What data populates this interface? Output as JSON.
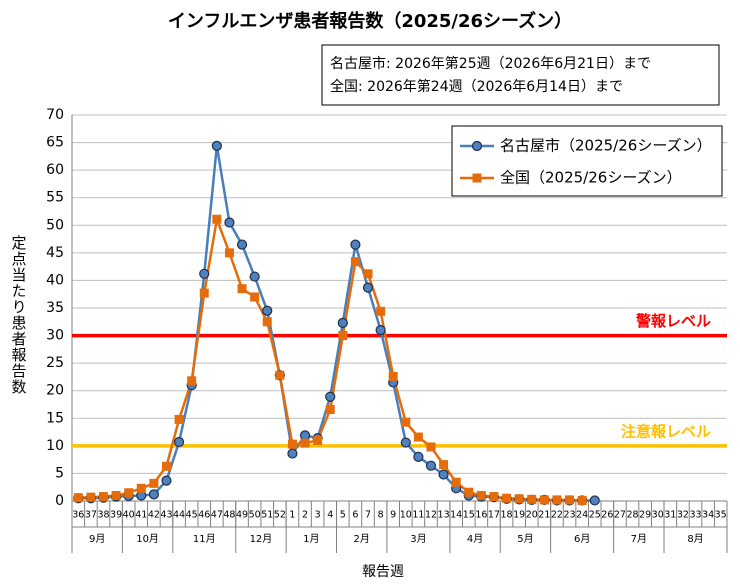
{
  "chart_data": {
    "type": "line",
    "title": "インフルエンザ患者報告数（2025/26シーズン）",
    "note_lines": [
      "名古屋市: 2026年第25週（2026年6月21日）まで",
      "全国: 2026年第24週（2026年6月14日）まで"
    ],
    "y_label": "定点当たり患者報告数",
    "x_label": "報告週",
    "categories": [
      "36",
      "37",
      "38",
      "39",
      "40",
      "41",
      "42",
      "43",
      "44",
      "45",
      "46",
      "47",
      "48",
      "49",
      "50",
      "51",
      "52",
      "1",
      "2",
      "3",
      "4",
      "5",
      "6",
      "7",
      "8",
      "9",
      "10",
      "11",
      "12",
      "13",
      "14",
      "15",
      "16",
      "17",
      "18",
      "19",
      "20",
      "21",
      "22",
      "23",
      "24",
      "25",
      "26",
      "27",
      "28",
      "29",
      "30",
      "31",
      "32",
      "33",
      "34",
      "35"
    ],
    "month_groups": [
      {
        "label": "9月",
        "span": 4
      },
      {
        "label": "10月",
        "span": 4
      },
      {
        "label": "11月",
        "span": 5
      },
      {
        "label": "12月",
        "span": 4
      },
      {
        "label": "1月",
        "span": 4
      },
      {
        "label": "2月",
        "span": 4
      },
      {
        "label": "3月",
        "span": 5
      },
      {
        "label": "4月",
        "span": 4
      },
      {
        "label": "5月",
        "span": 4
      },
      {
        "label": "6月",
        "span": 5
      },
      {
        "label": "7月",
        "span": 4
      },
      {
        "label": "8月",
        "span": 5
      }
    ],
    "series": [
      {
        "name": "名古屋市（2025/26シーズン）",
        "color": "#4a7ebb",
        "marker": "circle",
        "values": [
          0.5,
          0.5,
          0.6,
          0.8,
          0.9,
          1.0,
          1.2,
          3.7,
          10.7,
          21,
          41.2,
          64.4,
          50.5,
          46.5,
          40.7,
          34.5,
          22.8,
          8.6,
          11.9,
          11.4,
          18.9,
          32.3,
          46.5,
          38.7,
          31,
          21.5,
          10.6,
          8.0,
          6.4,
          4.8,
          2.3,
          1.0,
          0.8,
          0.7,
          0.4,
          0.3,
          0.2,
          0.2,
          0.1,
          0.1,
          0.1,
          0.1,
          null,
          null,
          null,
          null,
          null,
          null,
          null,
          null,
          null,
          null
        ]
      },
      {
        "name": "全国（2025/26シーズン）",
        "color": "#e46c0a",
        "marker": "square",
        "values": [
          0.6,
          0.7,
          0.8,
          1.0,
          1.5,
          2.3,
          3.2,
          6.3,
          14.8,
          21.8,
          37.7,
          51.1,
          45,
          38.5,
          37,
          32.5,
          22.8,
          10.3,
          10.5,
          11.0,
          16.6,
          30,
          43.4,
          41.2,
          34.4,
          22.6,
          14.3,
          11.6,
          9.8,
          6.6,
          3.4,
          1.6,
          1.0,
          0.8,
          0.5,
          0.4,
          0.3,
          0.2,
          0.2,
          0.2,
          0.1,
          null,
          null,
          null,
          null,
          null,
          null,
          null,
          null,
          null,
          null,
          null
        ]
      }
    ],
    "thresholds": [
      {
        "label": "警報レベル",
        "value": 30,
        "color": "#ff0000"
      },
      {
        "label": "注意報レベル",
        "value": 10,
        "color": "#ffc000"
      }
    ],
    "ylim": [
      0,
      70
    ],
    "yticks": [
      0,
      5,
      10,
      15,
      20,
      25,
      30,
      35,
      40,
      45,
      50,
      55,
      60,
      65,
      70
    ],
    "grid": true,
    "legend": "top-right"
  }
}
